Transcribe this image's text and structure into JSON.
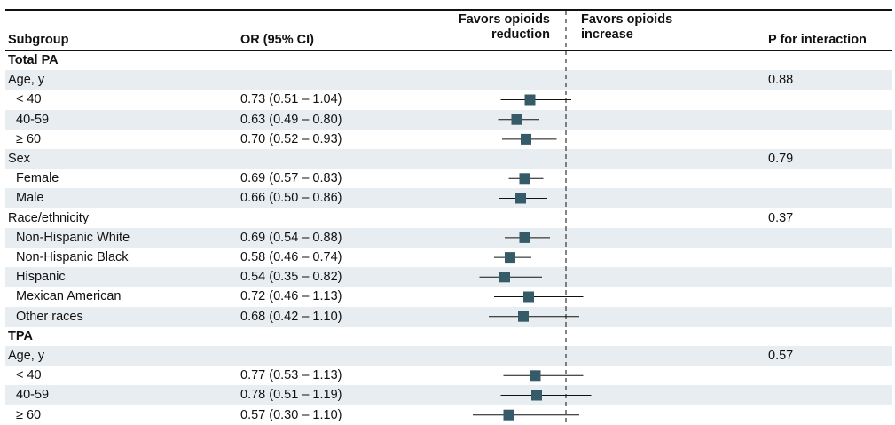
{
  "header": {
    "subgroup": "Subgroup",
    "or_ci": "OR (95% CI)",
    "favors_reduction_line1": "Favors opioids",
    "favors_reduction_line2": "reduction",
    "favors_increase_line1": "Favors opioids",
    "favors_increase_line2": "increase",
    "p_interaction": "P for interaction"
  },
  "colors": {
    "marker": "#345b67",
    "shade": "#e8edf1",
    "text": "#111111"
  },
  "chart_data": {
    "type": "forest",
    "reference_line": 1,
    "reference_line_style": "dashed",
    "xlim": [
      0.32,
      1.3
    ],
    "rows": [
      {
        "label": "Total PA",
        "style": "bold",
        "or_text": "",
        "p": "",
        "or": null,
        "lo": null,
        "hi": null
      },
      {
        "label": "Age, y",
        "style": "group",
        "or_text": "",
        "p": "0.88",
        "or": null,
        "lo": null,
        "hi": null
      },
      {
        "label": "< 40",
        "style": "item",
        "or_text": "0.73 (0.51 – 1.04)",
        "p": "",
        "or": 0.73,
        "lo": 0.51,
        "hi": 1.04
      },
      {
        "label": "40-59",
        "style": "item",
        "or_text": "0.63 (0.49 – 0.80)",
        "p": "",
        "or": 0.63,
        "lo": 0.49,
        "hi": 0.8
      },
      {
        "label": "≥ 60",
        "style": "item",
        "or_text": "0.70 (0.52 – 0.93)",
        "p": "",
        "or": 0.7,
        "lo": 0.52,
        "hi": 0.93
      },
      {
        "label": "Sex",
        "style": "group",
        "or_text": "",
        "p": "0.79",
        "or": null,
        "lo": null,
        "hi": null
      },
      {
        "label": "Female",
        "style": "item",
        "or_text": "0.69 (0.57 – 0.83)",
        "p": "",
        "or": 0.69,
        "lo": 0.57,
        "hi": 0.83
      },
      {
        "label": "Male",
        "style": "item",
        "or_text": "0.66 (0.50 – 0.86)",
        "p": "",
        "or": 0.66,
        "lo": 0.5,
        "hi": 0.86
      },
      {
        "label": "Race/ethnicity",
        "style": "group",
        "or_text": "",
        "p": "0.37",
        "or": null,
        "lo": null,
        "hi": null
      },
      {
        "label": "Non-Hispanic White",
        "style": "item",
        "or_text": "0.69 (0.54 – 0.88)",
        "p": "",
        "or": 0.69,
        "lo": 0.54,
        "hi": 0.88
      },
      {
        "label": "Non-Hispanic Black",
        "style": "item",
        "or_text": "0.58 (0.46 – 0.74)",
        "p": "",
        "or": 0.58,
        "lo": 0.46,
        "hi": 0.74
      },
      {
        "label": "Hispanic",
        "style": "item",
        "or_text": "0.54 (0.35 – 0.82)",
        "p": "",
        "or": 0.54,
        "lo": 0.35,
        "hi": 0.82
      },
      {
        "label": "Mexican American",
        "style": "item",
        "or_text": "0.72 (0.46 – 1.13)",
        "p": "",
        "or": 0.72,
        "lo": 0.46,
        "hi": 1.13
      },
      {
        "label": "Other races",
        "style": "item",
        "or_text": "0.68 (0.42 – 1.10)",
        "p": "",
        "or": 0.68,
        "lo": 0.42,
        "hi": 1.1
      },
      {
        "label": "TPA",
        "style": "bold",
        "or_text": "",
        "p": "",
        "or": null,
        "lo": null,
        "hi": null
      },
      {
        "label": "Age, y",
        "style": "group",
        "or_text": "",
        "p": "0.57",
        "or": null,
        "lo": null,
        "hi": null
      },
      {
        "label": "< 40",
        "style": "item",
        "or_text": "0.77 (0.53 – 1.13)",
        "p": "",
        "or": 0.77,
        "lo": 0.53,
        "hi": 1.13
      },
      {
        "label": "40-59",
        "style": "item",
        "or_text": "0.78 (0.51 – 1.19)",
        "p": "",
        "or": 0.78,
        "lo": 0.51,
        "hi": 1.19
      },
      {
        "label": "≥ 60",
        "style": "item",
        "or_text": "0.57 (0.30 – 1.10)",
        "p": "",
        "or": 0.57,
        "lo": 0.3,
        "hi": 1.1
      }
    ]
  }
}
